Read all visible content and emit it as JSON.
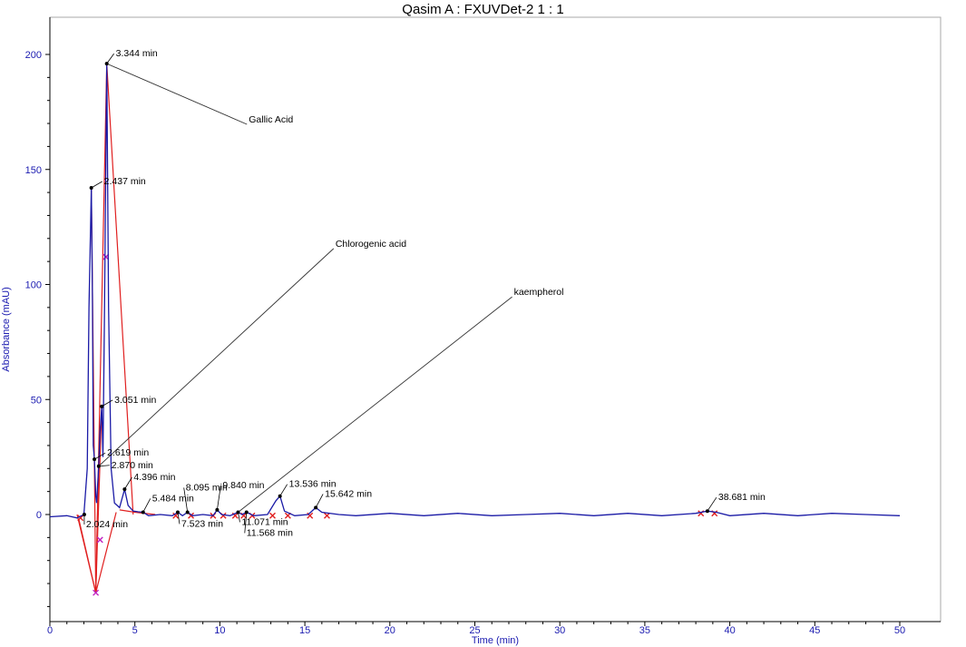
{
  "chart_data": {
    "type": "line",
    "title": "Qasim A : FXUVDet-2 1 : 1",
    "xlabel": "Time (min)",
    "ylabel": "Absorbance (mAU)",
    "xlim": [
      0,
      50
    ],
    "ylim": [
      -45,
      205
    ],
    "x_ticks": [
      0,
      5,
      10,
      15,
      20,
      25,
      30,
      35,
      40,
      45,
      50
    ],
    "y_ticks": [
      0,
      50,
      100,
      150,
      200
    ],
    "colors": {
      "trace": "#1a1aa6",
      "baseline": "#e02020",
      "peak_marker": "#000000",
      "apex_marker": "#c020c0",
      "axis_text": "#1a1ab0"
    },
    "series": [
      {
        "x": [
          0,
          1.0,
          1.6,
          2.0,
          2.2,
          2.3,
          2.437,
          2.5,
          2.55,
          2.619,
          2.7,
          2.75,
          2.87,
          2.95,
          3.051,
          3.12,
          3.2,
          3.344,
          3.45,
          3.6,
          3.8,
          4.1,
          4.396,
          4.6,
          4.9,
          5.2,
          5.484,
          5.8,
          6.5,
          7.2,
          7.523,
          7.8,
          8.095,
          8.4,
          9.0,
          9.6,
          9.84,
          10.1,
          10.6,
          11.071,
          11.3,
          11.568,
          12.0,
          12.8,
          13.3,
          13.536,
          13.8,
          14.4,
          15.2,
          15.642,
          16.0,
          17.0,
          18.0,
          20.0,
          22.0,
          24.0,
          26.0,
          28.0,
          30.0,
          32.0,
          34.0,
          36.0,
          38.0,
          38.681,
          39.2,
          40.0,
          42.0,
          44.0,
          46.0,
          48.0,
          50.0
        ],
        "values": [
          -1,
          -0.5,
          -1.5,
          0,
          20,
          90,
          142,
          95,
          30,
          24,
          8,
          5,
          21,
          36,
          47,
          25,
          80,
          196,
          90,
          20,
          5,
          3,
          11,
          4,
          1.5,
          1.2,
          1,
          -0.5,
          0,
          -0.5,
          1,
          -0.5,
          1,
          -0.5,
          0,
          -0.5,
          2,
          0,
          -0.5,
          1,
          0,
          1,
          -0.5,
          0,
          6,
          8,
          1.5,
          -0.5,
          0,
          3,
          1,
          0,
          -0.5,
          0.5,
          -0.5,
          0.5,
          -0.5,
          0,
          0.5,
          -0.5,
          0.5,
          -0.5,
          0.5,
          1.5,
          1,
          -0.5,
          0.5,
          -0.5,
          0.5,
          0,
          -0.5
        ]
      }
    ],
    "peaks": [
      {
        "label": "2.024 min",
        "x": 2.024,
        "y": 0
      },
      {
        "label": "2.437 min",
        "x": 2.437,
        "y": 142
      },
      {
        "label": "2.619 min",
        "x": 2.619,
        "y": 24
      },
      {
        "label": "2.870 min",
        "x": 2.87,
        "y": 21
      },
      {
        "label": "3.051 min",
        "x": 3.051,
        "y": 47
      },
      {
        "label": "3.344 min",
        "x": 3.344,
        "y": 196
      },
      {
        "label": "4.396 min",
        "x": 4.396,
        "y": 11
      },
      {
        "label": "5.484 min",
        "x": 5.484,
        "y": 1
      },
      {
        "label": "7.523 min",
        "x": 7.523,
        "y": 1
      },
      {
        "label": "8.095 min",
        "x": 8.095,
        "y": 1
      },
      {
        "label": "9.840 min",
        "x": 9.84,
        "y": 2
      },
      {
        "label": "11.071 min",
        "x": 11.071,
        "y": 1
      },
      {
        "label": "11.568 min",
        "x": 11.568,
        "y": 1
      },
      {
        "label": "13.536 min",
        "x": 13.536,
        "y": 8
      },
      {
        "label": "15.642 min",
        "x": 15.642,
        "y": 3
      },
      {
        "label": "38.681 min",
        "x": 38.681,
        "y": 1.5
      }
    ],
    "annotations": [
      {
        "text": "Gallic Acid",
        "x": 3.344,
        "y": 196,
        "text_x": 11.7,
        "text_y": 172
      },
      {
        "text": "Chlorogenic acid",
        "x": 2.87,
        "y": 21,
        "text_x": 16.8,
        "text_y": 118
      },
      {
        "text": "kaempherol",
        "x": 11.071,
        "y": 1,
        "text_x": 27.3,
        "text_y": 97
      }
    ],
    "grid": false
  }
}
